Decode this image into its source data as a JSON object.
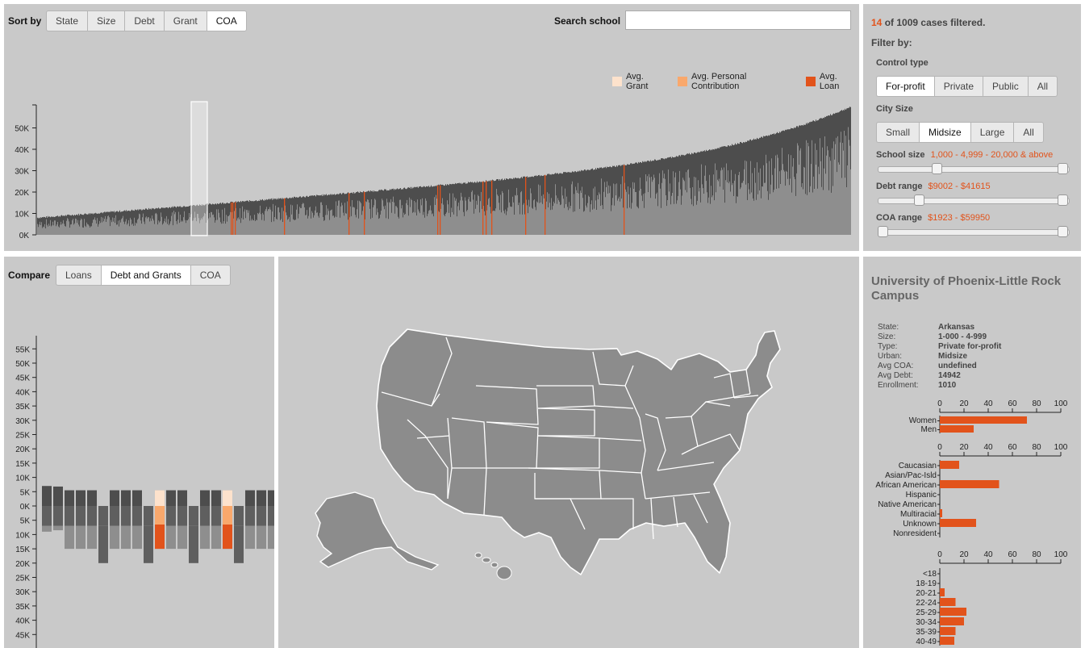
{
  "sortbar": {
    "label": "Sort by",
    "buttons": [
      "State",
      "Size",
      "Debt",
      "Grant",
      "COA"
    ],
    "active_index": 4,
    "search_label": "Search school",
    "search_value": ""
  },
  "legend": [
    {
      "label": "Avg. Grant",
      "color": "#fde2cc"
    },
    {
      "label": "Avg. Personal Contribution",
      "color": "#f9a86c"
    },
    {
      "label": "Avg. Loan",
      "color": "#e2531b"
    }
  ],
  "top_chart": {
    "ticks": [
      "0K",
      "10K",
      "20K",
      "30K",
      "40K",
      "50K"
    ]
  },
  "filter": {
    "count": "14",
    "count_suffix": "of 1009 cases filtered.",
    "title": "Filter by:",
    "control_label": "Control type",
    "control_buttons": [
      "For-profit",
      "Private",
      "Public",
      "All"
    ],
    "control_active": 0,
    "city_label": "City Size",
    "city_buttons": [
      "Small",
      "Midsize",
      "Large",
      "All"
    ],
    "city_active": 1,
    "school_size_label": "School size",
    "school_size_value": "1,000 - 4,999 - 20,000 & above",
    "school_size_knobs": [
      0.3,
      1.0
    ],
    "debt_label": "Debt range",
    "debt_value": "$9002 - $41615",
    "debt_knobs": [
      0.2,
      1.0
    ],
    "coa_label": "COA range",
    "coa_value": "$1923 - $59950",
    "coa_knobs": [
      0.0,
      1.0
    ]
  },
  "compare": {
    "label": "Compare",
    "buttons": [
      "Loans",
      "Debt and Grants",
      "COA"
    ],
    "active_index": 1,
    "up_ticks": [
      "0K",
      "5K",
      "10K",
      "15K",
      "20K",
      "25K",
      "30K",
      "35K",
      "40K",
      "45K",
      "50K",
      "55K"
    ],
    "down_ticks": [
      "5K",
      "10K",
      "15K",
      "20K",
      "25K",
      "30K",
      "35K",
      "40K",
      "45K"
    ]
  },
  "school": {
    "name": "University of Phoenix-Little Rock Campus",
    "fields": [
      {
        "key": "State:",
        "value": "Arkansas"
      },
      {
        "key": "Size:",
        "value": "1-000 - 4-999"
      },
      {
        "key": "Type:",
        "value": "Private for-profit"
      },
      {
        "key": "Urban:",
        "value": "Midsize"
      },
      {
        "key": "Avg COA:",
        "value": "undefined"
      },
      {
        "key": "Avg Debt:",
        "value": "14942"
      },
      {
        "key": "Enrollment:",
        "value": "1010"
      }
    ],
    "axis_ticks": [
      "0",
      "20",
      "40",
      "60",
      "80",
      "100"
    ],
    "gender": [
      {
        "label": "Women",
        "value": 72
      },
      {
        "label": "Men",
        "value": 28
      }
    ],
    "race": [
      {
        "label": "Caucasian",
        "value": 16
      },
      {
        "label": "Asian/Pac-Isld",
        "value": 0
      },
      {
        "label": "African American",
        "value": 49
      },
      {
        "label": "Hispanic",
        "value": 0
      },
      {
        "label": "Native American",
        "value": 0
      },
      {
        "label": "Multiracial",
        "value": 2
      },
      {
        "label": "Unknown",
        "value": 30
      },
      {
        "label": "Nonresident",
        "value": 0
      }
    ],
    "age": [
      {
        "label": "<18",
        "value": 0
      },
      {
        "label": "18-19",
        "value": 0
      },
      {
        "label": "20-21",
        "value": 4
      },
      {
        "label": "22-24",
        "value": 13
      },
      {
        "label": "25-29",
        "value": 22
      },
      {
        "label": "30-34",
        "value": 20
      },
      {
        "label": "35-39",
        "value": 13
      },
      {
        "label": "40-49",
        "value": 12
      }
    ]
  },
  "colors": {
    "panel": "#c9c9c9",
    "accent": "#e2531b",
    "state_fill": "#8c8c8c"
  }
}
